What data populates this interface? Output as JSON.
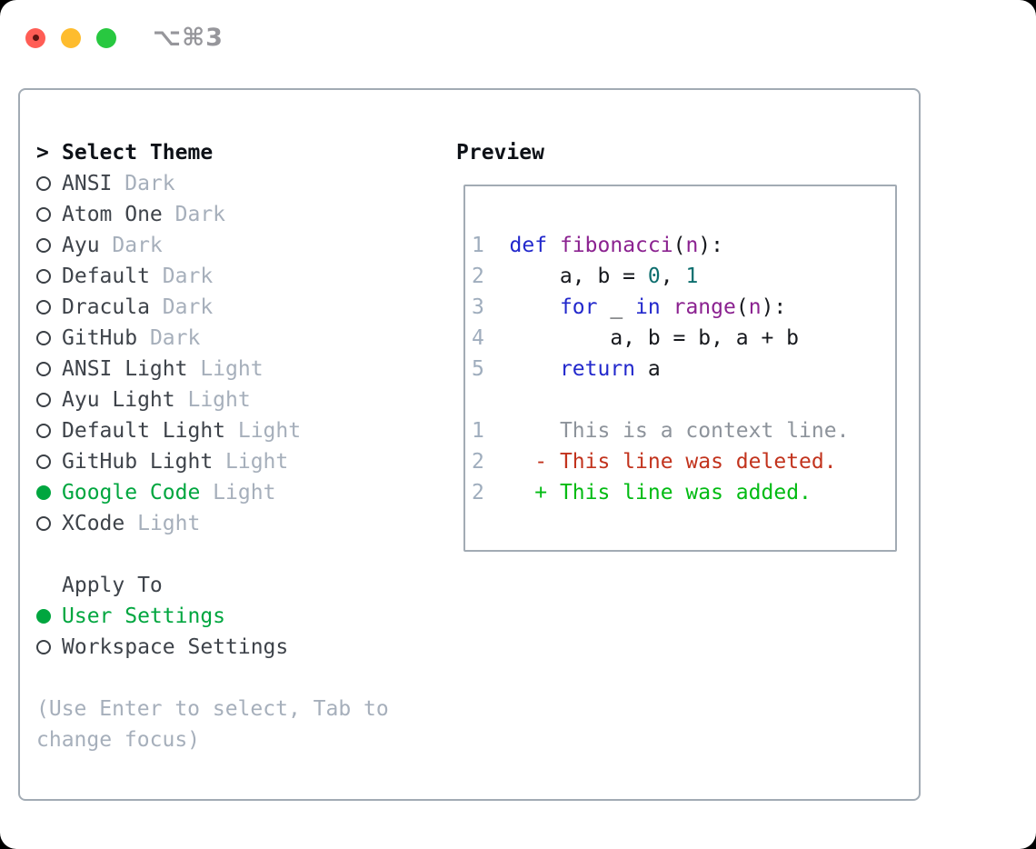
{
  "window": {
    "title": "⌥⌘3",
    "traffic_lights": [
      "close",
      "minimize",
      "zoom"
    ]
  },
  "theme_list": {
    "header_prompt": ">",
    "header_label": "Select Theme",
    "items": [
      {
        "name": "ANSI",
        "variant": "Dark",
        "selected": false
      },
      {
        "name": "Atom One",
        "variant": "Dark",
        "selected": false
      },
      {
        "name": "Ayu",
        "variant": "Dark",
        "selected": false
      },
      {
        "name": "Default",
        "variant": "Dark",
        "selected": false
      },
      {
        "name": "Dracula",
        "variant": "Dark",
        "selected": false
      },
      {
        "name": "GitHub",
        "variant": "Dark",
        "selected": false
      },
      {
        "name": "ANSI Light",
        "variant": "Light",
        "selected": false
      },
      {
        "name": "Ayu Light",
        "variant": "Light",
        "selected": false
      },
      {
        "name": "Default Light",
        "variant": "Light",
        "selected": false
      },
      {
        "name": "GitHub Light",
        "variant": "Light",
        "selected": false
      },
      {
        "name": "Google Code",
        "variant": "Light",
        "selected": true
      },
      {
        "name": "XCode",
        "variant": "Light",
        "selected": false
      }
    ]
  },
  "apply_to": {
    "header": "Apply To",
    "options": [
      {
        "name": "User Settings",
        "selected": true
      },
      {
        "name": "Workspace Settings",
        "selected": false
      }
    ]
  },
  "help": {
    "line1": "(Use Enter to select, Tab to",
    "line2": "change focus)"
  },
  "preview": {
    "header": "Preview",
    "lines": [
      {
        "kind": "code",
        "segs": [
          [
            "ln",
            "1  "
          ],
          [
            "kw",
            "def"
          ],
          [
            "plain",
            " "
          ],
          [
            "fn",
            "fibonacci"
          ],
          [
            "plain",
            "("
          ],
          [
            "fn",
            "n"
          ],
          [
            "plain",
            "):"
          ]
        ]
      },
      {
        "kind": "code",
        "segs": [
          [
            "ln",
            "2  "
          ],
          [
            "plain",
            "    a, b = "
          ],
          [
            "num",
            "0"
          ],
          [
            "plain",
            ", "
          ],
          [
            "num",
            "1"
          ]
        ]
      },
      {
        "kind": "code",
        "segs": [
          [
            "ln",
            "3  "
          ],
          [
            "plain",
            "    "
          ],
          [
            "kw",
            "for"
          ],
          [
            "plain",
            " _ "
          ],
          [
            "kw",
            "in"
          ],
          [
            "plain",
            " "
          ],
          [
            "fn",
            "range"
          ],
          [
            "plain",
            "("
          ],
          [
            "fn",
            "n"
          ],
          [
            "plain",
            "):"
          ]
        ]
      },
      {
        "kind": "code",
        "segs": [
          [
            "ln",
            "4  "
          ],
          [
            "plain",
            "        a, b = b, a + b"
          ]
        ]
      },
      {
        "kind": "code",
        "segs": [
          [
            "ln",
            "5  "
          ],
          [
            "plain",
            "    "
          ],
          [
            "kw",
            "return"
          ],
          [
            "plain",
            " a"
          ]
        ]
      },
      {
        "kind": "blank",
        "segs": []
      },
      {
        "kind": "diff-context",
        "segs": [
          [
            "ln",
            "1"
          ],
          [
            "ctx",
            "      This is a context line."
          ]
        ]
      },
      {
        "kind": "diff-deleted",
        "segs": [
          [
            "ln",
            "2"
          ],
          [
            "del",
            "    - This line was deleted."
          ]
        ]
      },
      {
        "kind": "diff-added",
        "segs": [
          [
            "ln",
            "2"
          ],
          [
            "add",
            "    + This line was added."
          ]
        ]
      }
    ]
  },
  "colors": {
    "accent_green": "#00a63f",
    "muted": "#a6afbb",
    "theme_name": "#3e434a",
    "header_text": "#0d1117",
    "border": "#a2abb4",
    "ring": "#3a3f45",
    "ln": "#9fadbd",
    "ctx": "#8d939b",
    "kw": "#2228cc",
    "fn": "#8b2290",
    "num": "#0d6e6e",
    "plain": "#16181d",
    "del": "#c2331d",
    "add": "#02bb13",
    "traffic_red": "#ff5d55",
    "traffic_yellow": "#febc2e",
    "traffic_green": "#28c840",
    "title_gray": "#96969b"
  }
}
